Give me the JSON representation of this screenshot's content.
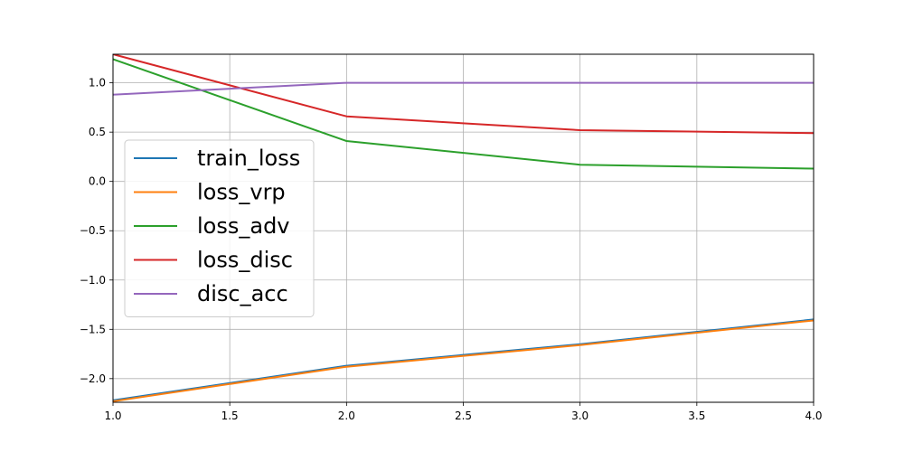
{
  "chart_data": {
    "type": "line",
    "title": "",
    "xlabel": "",
    "ylabel": "",
    "xlim": [
      1.0,
      4.0
    ],
    "ylim": [
      -2.24,
      1.29
    ],
    "grid": true,
    "legend_position": "center-left",
    "x": [
      1,
      2,
      3,
      4
    ],
    "x_ticks": [
      {
        "value": 1.0,
        "label": "1.0"
      },
      {
        "value": 1.5,
        "label": "1.5"
      },
      {
        "value": 2.0,
        "label": "2.0"
      },
      {
        "value": 2.5,
        "label": "2.5"
      },
      {
        "value": 3.0,
        "label": "3.0"
      },
      {
        "value": 3.5,
        "label": "3.5"
      },
      {
        "value": 4.0,
        "label": "4.0"
      }
    ],
    "y_ticks": [
      {
        "value": 1.0,
        "label": "1.0"
      },
      {
        "value": 0.5,
        "label": "0.5"
      },
      {
        "value": 0.0,
        "label": "0.0"
      },
      {
        "value": -0.5,
        "label": "−0.5"
      },
      {
        "value": -1.0,
        "label": "−1.0"
      },
      {
        "value": -1.5,
        "label": "−1.5"
      },
      {
        "value": -2.0,
        "label": "−2.0"
      }
    ],
    "series": [
      {
        "name": "train_loss",
        "color": "#1f77b4",
        "values": [
          -2.22,
          -1.87,
          -1.65,
          -1.4
        ]
      },
      {
        "name": "loss_vrp",
        "color": "#ff7f0e",
        "values": [
          -2.23,
          -1.88,
          -1.66,
          -1.41
        ]
      },
      {
        "name": "loss_adv",
        "color": "#2ca02c",
        "values": [
          1.24,
          0.41,
          0.17,
          0.13
        ]
      },
      {
        "name": "loss_disc",
        "color": "#d62728",
        "values": [
          1.29,
          0.66,
          0.52,
          0.49
        ]
      },
      {
        "name": "disc_acc",
        "color": "#9467bd",
        "values": [
          0.88,
          1.0,
          1.0,
          1.0
        ]
      }
    ]
  }
}
